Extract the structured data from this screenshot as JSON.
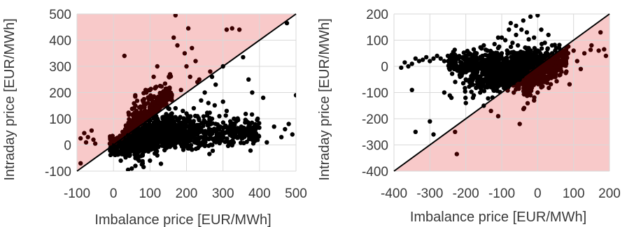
{
  "colors": {
    "region": "#f8c9c9",
    "point": "#000000",
    "point_in_region": "#3a0000",
    "grid": "#d9d9d9",
    "diagonal": "#000000"
  },
  "chart_data": [
    {
      "type": "scatter",
      "xlabel": "Imbalance price [EUR/MWh]",
      "ylabel": "Intraday price [EUR/MWh]",
      "xlim": [
        -100,
        500
      ],
      "ylim": [
        -100,
        500
      ],
      "xticks": [
        -100,
        0,
        100,
        200,
        300,
        400,
        500
      ],
      "yticks": [
        -100,
        0,
        100,
        200,
        300,
        400,
        500
      ],
      "shaded_region": "above-diagonal",
      "diagonal": [
        [
          -100,
          -100
        ],
        [
          500,
          500
        ]
      ],
      "highlight_points": [
        [
          -90,
          25
        ],
        [
          -80,
          45
        ],
        [
          -75,
          10
        ],
        [
          -70,
          30
        ],
        [
          -60,
          55
        ],
        [
          -55,
          20
        ],
        [
          -50,
          5
        ],
        [
          -90,
          -70
        ],
        [
          30,
          340
        ],
        [
          60,
          150
        ],
        [
          80,
          170
        ],
        [
          90,
          200
        ],
        [
          110,
          260
        ],
        [
          115,
          220
        ],
        [
          120,
          300
        ],
        [
          140,
          190
        ],
        [
          150,
          140
        ],
        [
          155,
          270
        ],
        [
          165,
          410
        ],
        [
          170,
          495
        ],
        [
          175,
          380
        ],
        [
          185,
          210
        ],
        [
          195,
          350
        ],
        [
          200,
          300
        ],
        [
          210,
          260
        ],
        [
          205,
          445
        ],
        [
          215,
          370
        ],
        [
          225,
          320
        ],
        [
          235,
          250
        ],
        [
          230,
          240
        ],
        [
          250,
          200
        ],
        [
          265,
          280
        ],
        [
          270,
          260
        ],
        [
          300,
          300
        ],
        [
          310,
          440
        ],
        [
          325,
          445
        ],
        [
          345,
          440
        ],
        [
          355,
          335
        ],
        [
          370,
          250
        ],
        [
          380,
          200
        ],
        [
          410,
          180
        ],
        [
          475,
          465
        ],
        [
          500,
          190
        ],
        [
          480,
          80
        ],
        [
          470,
          60
        ],
        [
          440,
          70
        ],
        [
          460,
          30
        ],
        [
          490,
          40
        ],
        [
          390,
          40
        ],
        [
          380,
          20
        ],
        [
          420,
          10
        ],
        [
          350,
          70
        ],
        [
          330,
          100
        ],
        [
          310,
          130
        ],
        [
          300,
          165
        ],
        [
          280,
          230
        ],
        [
          260,
          160
        ],
        [
          240,
          170
        ],
        [
          220,
          140
        ],
        [
          200,
          120
        ],
        [
          180,
          100
        ],
        [
          160,
          80
        ],
        [
          150,
          90
        ],
        [
          140,
          60
        ],
        [
          130,
          40
        ],
        [
          120,
          20
        ],
        [
          110,
          10
        ],
        [
          100,
          -5
        ],
        [
          90,
          -20
        ],
        [
          80,
          -40
        ],
        [
          70,
          -60
        ],
        [
          60,
          -80
        ],
        [
          50,
          -90
        ],
        [
          40,
          -95
        ],
        [
          20,
          -60
        ],
        [
          10,
          -30
        ],
        [
          0,
          -15
        ],
        [
          -10,
          5
        ],
        [
          5,
          10
        ],
        [
          15,
          30
        ],
        [
          25,
          50
        ],
        [
          35,
          70
        ],
        [
          45,
          85
        ],
        [
          55,
          110
        ],
        [
          65,
          125
        ],
        [
          75,
          140
        ],
        [
          85,
          115
        ],
        [
          95,
          160
        ],
        [
          105,
          130
        ],
        [
          125,
          175
        ],
        [
          135,
          150
        ],
        [
          145,
          180
        ],
        [
          160,
          120
        ],
        [
          170,
          140
        ],
        [
          190,
          130
        ],
        [
          210,
          90
        ],
        [
          230,
          110
        ],
        [
          250,
          90
        ],
        [
          270,
          100
        ],
        [
          290,
          110
        ],
        [
          320,
          90
        ],
        [
          340,
          60
        ],
        [
          360,
          50
        ],
        [
          280,
          80
        ],
        [
          240,
          60
        ],
        [
          200,
          40
        ],
        [
          180,
          20
        ],
        [
          160,
          0
        ],
        [
          140,
          -20
        ],
        [
          120,
          -40
        ],
        [
          100,
          -60
        ],
        [
          80,
          -70
        ],
        [
          60,
          -50
        ],
        [
          175,
          10
        ],
        [
          195,
          60
        ],
        [
          215,
          30
        ],
        [
          260,
          50
        ],
        [
          300,
          40
        ],
        [
          330,
          30
        ],
        [
          365,
          90
        ],
        [
          395,
          100
        ],
        [
          155,
          40
        ],
        [
          135,
          100
        ],
        [
          115,
          70
        ],
        [
          95,
          50
        ],
        [
          75,
          30
        ],
        [
          55,
          20
        ],
        [
          45,
          50
        ],
        [
          30,
          10
        ]
      ]
    },
    {
      "type": "scatter",
      "xlabel": "Imbalance price [EUR/MWh]",
      "ylabel": "Intraday price [EUR/MWh]",
      "xlim": [
        -400,
        200
      ],
      "ylim": [
        -400,
        200
      ],
      "xticks": [
        -400,
        -300,
        -200,
        -100,
        0,
        100,
        200
      ],
      "yticks": [
        -400,
        -300,
        -200,
        -100,
        0,
        100,
        200
      ],
      "shaded_region": "below-diagonal",
      "diagonal": [
        [
          -400,
          -400
        ],
        [
          200,
          200
        ]
      ],
      "highlight_points": [
        [
          -380,
          -5
        ],
        [
          -370,
          15
        ],
        [
          -360,
          0
        ],
        [
          -350,
          10
        ],
        [
          -340,
          30
        ],
        [
          -330,
          20
        ],
        [
          -320,
          25
        ],
        [
          -310,
          35
        ],
        [
          -300,
          20
        ],
        [
          -290,
          30
        ],
        [
          -280,
          40
        ],
        [
          -270,
          30
        ],
        [
          -350,
          -90
        ],
        [
          -340,
          -250
        ],
        [
          -300,
          -210
        ],
        [
          -290,
          -260
        ],
        [
          -260,
          -100
        ],
        [
          -240,
          -120
        ],
        [
          -230,
          -250
        ],
        [
          -225,
          -335
        ],
        [
          -200,
          -50
        ],
        [
          -180,
          -70
        ],
        [
          -150,
          80
        ],
        [
          -140,
          60
        ],
        [
          -120,
          85
        ],
        [
          -100,
          110
        ],
        [
          -80,
          140
        ],
        [
          -60,
          155
        ],
        [
          -40,
          175
        ],
        [
          -20,
          190
        ],
        [
          0,
          195
        ],
        [
          -50,
          -220
        ],
        [
          -60,
          120
        ],
        [
          20,
          90
        ],
        [
          40,
          80
        ],
        [
          60,
          70
        ],
        [
          80,
          40
        ],
        [
          100,
          60
        ],
        [
          110,
          20
        ],
        [
          120,
          -10
        ],
        [
          130,
          50
        ],
        [
          150,
          80
        ],
        [
          170,
          60
        ],
        [
          175,
          130
        ],
        [
          185,
          65
        ],
        [
          190,
          40
        ],
        [
          -30,
          -90
        ],
        [
          -20,
          -110
        ],
        [
          -10,
          -130
        ],
        [
          0,
          -100
        ],
        [
          10,
          -80
        ],
        [
          20,
          -60
        ],
        [
          30,
          -40
        ],
        [
          40,
          -20
        ],
        [
          50,
          0
        ],
        [
          -40,
          -70
        ],
        [
          -50,
          -50
        ],
        [
          -60,
          -30
        ],
        [
          -70,
          -10
        ],
        [
          -80,
          10
        ],
        [
          -90,
          30
        ],
        [
          -100,
          50
        ],
        [
          -110,
          70
        ],
        [
          -120,
          40
        ],
        [
          -130,
          20
        ],
        [
          -140,
          0
        ],
        [
          -150,
          -20
        ],
        [
          -160,
          -40
        ],
        [
          -170,
          10
        ],
        [
          -180,
          30
        ],
        [
          -190,
          50
        ],
        [
          -200,
          20
        ],
        [
          -210,
          0
        ],
        [
          -220,
          30
        ],
        [
          -240,
          10
        ],
        [
          -250,
          40
        ],
        [
          -260,
          20
        ],
        [
          -200,
          -140
        ],
        [
          -180,
          -120
        ],
        [
          -160,
          -100
        ],
        [
          -140,
          -80
        ],
        [
          -120,
          -60
        ],
        [
          -100,
          -40
        ],
        [
          -80,
          -20
        ],
        [
          -60,
          0
        ],
        [
          -40,
          20
        ],
        [
          -20,
          40
        ],
        [
          0,
          60
        ],
        [
          20,
          40
        ],
        [
          40,
          20
        ],
        [
          60,
          0
        ],
        [
          80,
          -20
        ],
        [
          -70,
          90
        ],
        [
          -90,
          100
        ],
        [
          -110,
          110
        ],
        [
          -30,
          130
        ],
        [
          -10,
          110
        ],
        [
          10,
          140
        ],
        [
          30,
          120
        ],
        [
          -150,
          -150
        ],
        [
          -130,
          -170
        ],
        [
          -110,
          -190
        ],
        [
          -75,
          165
        ],
        [
          -45,
          140
        ],
        [
          -25,
          70
        ],
        [
          5,
          25
        ],
        [
          25,
          10
        ],
        [
          -5,
          -40
        ],
        [
          -15,
          -20
        ],
        [
          -35,
          50
        ],
        [
          -55,
          80
        ],
        [
          -85,
          60
        ]
      ]
    }
  ]
}
